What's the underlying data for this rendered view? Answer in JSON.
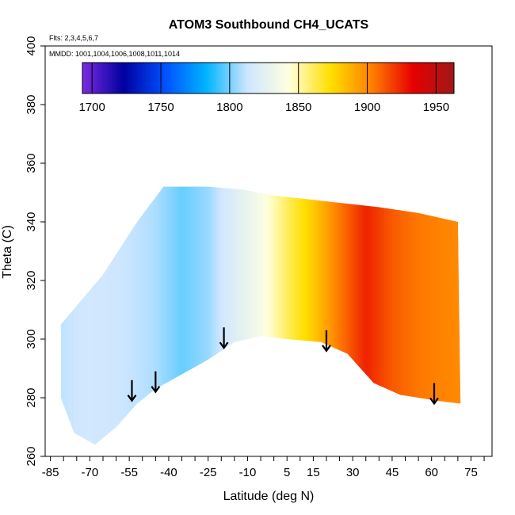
{
  "chart_data": {
    "type": "heatmap",
    "title": "ATOM3 Southbound CH4_UCATS",
    "flights_note": "Flts: 2,3,4,5,6,7",
    "mmdd_note": "MMDD: 1001,1004,1006,1008,1011,1014",
    "xlabel": "Latitude (deg N)",
    "ylabel": "Theta (C)",
    "xlim": [
      -87,
      83
    ],
    "ylim": [
      260,
      400
    ],
    "x_ticks": [
      -85,
      -70,
      -55,
      -40,
      -25,
      -10,
      5,
      15,
      30,
      45,
      60,
      75
    ],
    "x_tick_labels": [
      "-85",
      "-70",
      "-55",
      "-40",
      "-25",
      "-10",
      "5",
      "15",
      "30",
      "45",
      "60",
      "75"
    ],
    "y_ticks": [
      260,
      280,
      300,
      320,
      340,
      360,
      380,
      400
    ],
    "y_tick_labels": [
      "260",
      "280",
      "300",
      "320",
      "340",
      "360",
      "380",
      "400"
    ],
    "colorbar": {
      "min": 1693,
      "max": 1963,
      "ticks": [
        1700,
        1750,
        1800,
        1850,
        1900,
        1950
      ],
      "tick_labels": [
        "1700",
        "1750",
        "1800",
        "1850",
        "1900",
        "1950"
      ],
      "colors": [
        "#7b2be0",
        "#0000a0",
        "#0050ff",
        "#00b4ff",
        "#cfe6ff",
        "#ffffe0",
        "#ffe000",
        "#ff8000",
        "#e80000",
        "#a01818"
      ]
    },
    "grid": false,
    "arrows_at_latitude": [
      {
        "lat": -54,
        "theta": 286
      },
      {
        "lat": -45,
        "theta": 289
      },
      {
        "lat": -19,
        "theta": 304
      },
      {
        "lat": 20,
        "theta": 303
      },
      {
        "lat": 61,
        "theta": 285
      }
    ],
    "field": {
      "ch4_ppb_by_latitude": [
        {
          "lat": -83,
          "value": 1810
        },
        {
          "lat": -70,
          "value": 1815
        },
        {
          "lat": -55,
          "value": 1812
        },
        {
          "lat": -45,
          "value": 1808
        },
        {
          "lat": -35,
          "value": 1798
        },
        {
          "lat": -25,
          "value": 1805
        },
        {
          "lat": -15,
          "value": 1822
        },
        {
          "lat": -5,
          "value": 1838
        },
        {
          "lat": 5,
          "value": 1860
        },
        {
          "lat": 15,
          "value": 1880
        },
        {
          "lat": 25,
          "value": 1905
        },
        {
          "lat": 35,
          "value": 1925
        },
        {
          "lat": 45,
          "value": 1912
        },
        {
          "lat": 55,
          "value": 1905
        },
        {
          "lat": 70,
          "value": 1900
        }
      ],
      "upper_boundary": [
        {
          "lat": -81,
          "theta": 305
        },
        {
          "lat": -65,
          "theta": 322
        },
        {
          "lat": -52,
          "theta": 340
        },
        {
          "lat": -42,
          "theta": 352
        },
        {
          "lat": -40,
          "theta": 352
        },
        {
          "lat": -25,
          "theta": 352
        },
        {
          "lat": -12,
          "theta": 351
        },
        {
          "lat": 0,
          "theta": 349
        },
        {
          "lat": 20,
          "theta": 347
        },
        {
          "lat": 40,
          "theta": 345
        },
        {
          "lat": 55,
          "theta": 343
        },
        {
          "lat": 70,
          "theta": 340
        }
      ],
      "lower_boundary": [
        {
          "lat": 71,
          "theta": 278
        },
        {
          "lat": 62,
          "theta": 279
        },
        {
          "lat": 48,
          "theta": 281
        },
        {
          "lat": 38,
          "theta": 285
        },
        {
          "lat": 28,
          "theta": 295
        },
        {
          "lat": 18,
          "theta": 299
        },
        {
          "lat": 5,
          "theta": 300
        },
        {
          "lat": -5,
          "theta": 301
        },
        {
          "lat": -15,
          "theta": 299
        },
        {
          "lat": -25,
          "theta": 293
        },
        {
          "lat": -35,
          "theta": 288
        },
        {
          "lat": -45,
          "theta": 283
        },
        {
          "lat": -52,
          "theta": 278
        },
        {
          "lat": -60,
          "theta": 270
        },
        {
          "lat": -68,
          "theta": 264
        },
        {
          "lat": -76,
          "theta": 268
        },
        {
          "lat": -81,
          "theta": 280
        }
      ]
    }
  }
}
